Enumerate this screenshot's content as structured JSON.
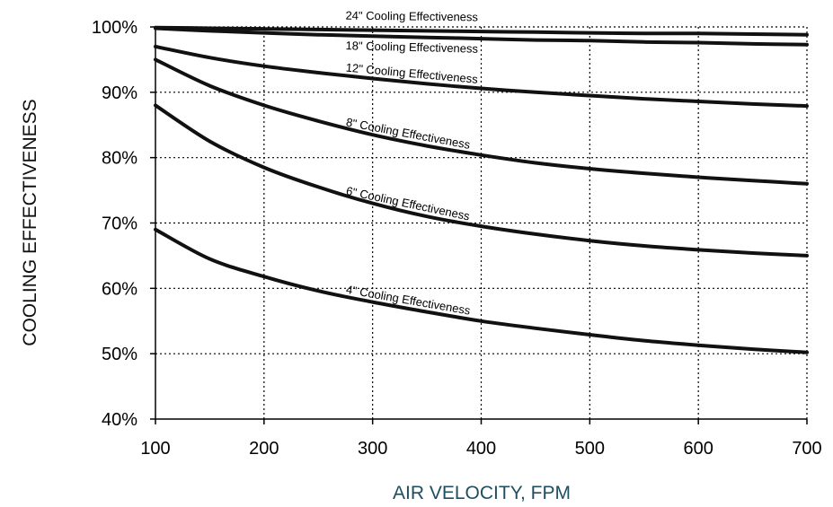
{
  "chart_data": {
    "type": "line",
    "title": "",
    "xlabel": "AIR VELOCITY, FPM",
    "ylabel": "COOLING EFFECTIVENESS",
    "xlim": [
      100,
      700
    ],
    "ylim": [
      40,
      100
    ],
    "xticks": [
      100,
      200,
      300,
      400,
      500,
      600,
      700
    ],
    "yticks": [
      40,
      50,
      60,
      70,
      80,
      90,
      100
    ],
    "xtick_labels": [
      "100",
      "200",
      "300",
      "400",
      "500",
      "600",
      "700"
    ],
    "ytick_labels": [
      "40%",
      "50%",
      "60%",
      "70%",
      "80%",
      "90%",
      "100%"
    ],
    "grid": true,
    "legend": "none",
    "line_color": "#111111",
    "xlabel_color": "#1f4e5f",
    "ylabel_color": "#111111",
    "x": [
      100,
      150,
      200,
      250,
      300,
      350,
      400,
      450,
      500,
      550,
      600,
      650,
      700
    ],
    "series": [
      {
        "name": "24\" Cooling Effectiveness",
        "values": [
          99.9,
          99.8,
          99.7,
          99.6,
          99.5,
          99.4,
          99.3,
          99.2,
          99.1,
          99.0,
          99.0,
          98.9,
          98.8
        ]
      },
      {
        "name": "18\" Cooling Effectiveness",
        "values": [
          99.8,
          99.4,
          99.1,
          98.8,
          98.6,
          98.4,
          98.2,
          98.0,
          97.9,
          97.7,
          97.6,
          97.4,
          97.3
        ]
      },
      {
        "name": "12\" Cooling Effectiveness",
        "values": [
          97.0,
          95.3,
          94.0,
          93.0,
          92.1,
          91.3,
          90.6,
          90.0,
          89.5,
          89.0,
          88.6,
          88.2,
          87.9
        ]
      },
      {
        "name": "8\" Cooling Effectiveness",
        "values": [
          95.0,
          91.0,
          88.0,
          85.6,
          83.5,
          81.8,
          80.4,
          79.2,
          78.3,
          77.6,
          77.0,
          76.5,
          76.0
        ]
      },
      {
        "name": "6\" Cooling Effectiveness",
        "values": [
          88.0,
          82.5,
          78.5,
          75.5,
          73.0,
          71.0,
          69.5,
          68.3,
          67.3,
          66.5,
          65.9,
          65.4,
          65.0
        ]
      },
      {
        "name": "4\" Cooling Effectiveness",
        "values": [
          69.0,
          64.5,
          61.8,
          59.6,
          57.9,
          56.4,
          55.0,
          53.9,
          52.9,
          52.0,
          51.3,
          50.7,
          50.2
        ]
      }
    ]
  }
}
